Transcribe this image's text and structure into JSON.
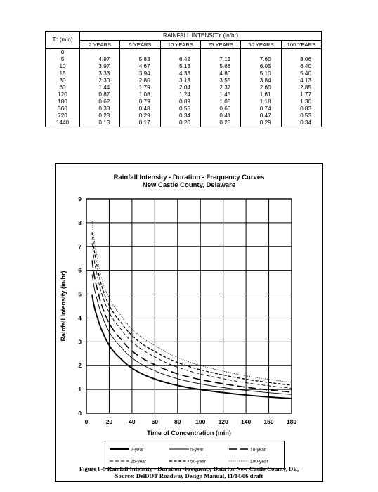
{
  "table": {
    "tc_header": "Tc (min)",
    "group_header": "RAINFALL INTENSITY (in/hr)",
    "columns": [
      "2 YEARS",
      "5 YEARS",
      "10 YEARS",
      "25 YEARS",
      "50 YEARS",
      "100 YEARS"
    ],
    "rows": [
      {
        "tc": "0",
        "vals": [
          "",
          "",
          "",
          "",
          "",
          ""
        ]
      },
      {
        "tc": "5",
        "vals": [
          "4.97",
          "5.83",
          "6.42",
          "7.13",
          "7.60",
          "8.06"
        ]
      },
      {
        "tc": "10",
        "vals": [
          "3.97",
          "4.67",
          "5.13",
          "5.68",
          "6.05",
          "6.40"
        ]
      },
      {
        "tc": "15",
        "vals": [
          "3.33",
          "3.94",
          "4.33",
          "4.80",
          "5.10",
          "5.40"
        ]
      },
      {
        "tc": "30",
        "vals": [
          "2.30",
          "2.80",
          "3.13",
          "3.55",
          "3.84",
          "4.13"
        ]
      },
      {
        "tc": "60",
        "vals": [
          "1.44",
          "1.79",
          "2.04",
          "2.37",
          "2.60",
          "2.85"
        ]
      },
      {
        "tc": "120",
        "vals": [
          "0.87",
          "1.08",
          "1.24",
          "1.45",
          "1.61",
          "1.77"
        ]
      },
      {
        "tc": "180",
        "vals": [
          "0.62",
          "0.79",
          "0.89",
          "1.05",
          "1.18",
          "1.30"
        ]
      },
      {
        "tc": "360",
        "vals": [
          "0.38",
          "0.48",
          "0.55",
          "0.66",
          "0.74",
          "0.83"
        ]
      },
      {
        "tc": "720",
        "vals": [
          "0.23",
          "0.29",
          "0.34",
          "0.41",
          "0.47",
          "0.53"
        ]
      },
      {
        "tc": "1440",
        "vals": [
          "0.13",
          "0.17",
          "0.20",
          "0.25",
          "0.29",
          "0.34"
        ]
      }
    ]
  },
  "chart_data": {
    "type": "line",
    "title": "Rainfall Intensity - Duration - Frequency Curves",
    "subtitle": "New Castle County, Delaware",
    "xlabel": "Time of Concentration (min)",
    "ylabel": "Rainfall Intensity (in/hr)",
    "xlim": [
      0,
      180
    ],
    "ylim": [
      0,
      9
    ],
    "x_ticks": [
      "0",
      "20",
      "40",
      "60",
      "80",
      "100",
      "120",
      "140",
      "160",
      "180"
    ],
    "y_ticks": [
      "0",
      "1",
      "2",
      "3",
      "4",
      "5",
      "6",
      "7",
      "8",
      "9"
    ],
    "grid": true,
    "legend_position": "bottom",
    "x": [
      5,
      10,
      15,
      30,
      60,
      120,
      180
    ],
    "series": [
      {
        "name": "2-year",
        "style": "thick-solid",
        "values": [
          4.97,
          3.97,
          3.33,
          2.3,
          1.44,
          0.87,
          0.62
        ]
      },
      {
        "name": "5-year",
        "style": "thin-solid",
        "values": [
          5.83,
          4.67,
          3.94,
          2.8,
          1.79,
          1.08,
          0.79
        ]
      },
      {
        "name": "10-year",
        "style": "long-dash",
        "values": [
          6.42,
          5.13,
          4.33,
          3.13,
          2.04,
          1.24,
          0.89
        ]
      },
      {
        "name": "25-year",
        "style": "short-dash",
        "values": [
          7.13,
          5.68,
          4.8,
          3.55,
          2.37,
          1.45,
          1.05
        ]
      },
      {
        "name": "50-year",
        "style": "bold-dash",
        "values": [
          7.6,
          6.05,
          5.1,
          3.84,
          2.6,
          1.61,
          1.18
        ]
      },
      {
        "name": "100-year",
        "style": "dotted",
        "values": [
          8.06,
          6.4,
          5.4,
          4.13,
          2.85,
          1.77,
          1.3
        ]
      }
    ]
  },
  "caption": {
    "line1": "Figure 6-5 Rainfall Intensity - Duration -Frequency Data for New Castle County, DE,",
    "line2": "Source: DelDOT Roadway Design Manual, 11/14/06 draft"
  }
}
